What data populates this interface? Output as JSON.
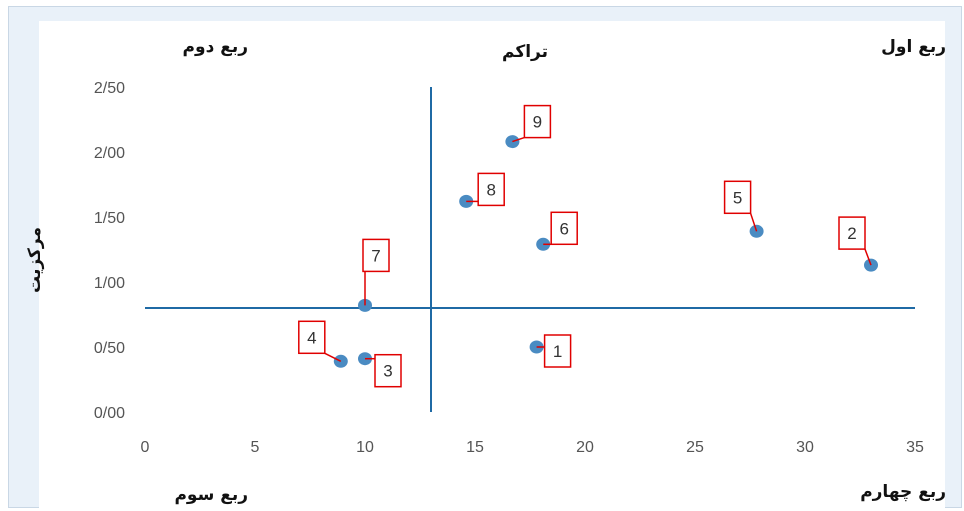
{
  "chart_data": {
    "type": "scatter",
    "title": "تراکم",
    "xlabel": "",
    "ylabel": "مرکزیت",
    "xlim": [
      0,
      35
    ],
    "ylim": [
      0,
      2.5
    ],
    "x_ticks": [
      "0",
      "5",
      "10",
      "15",
      "20",
      "25",
      "30",
      "35"
    ],
    "y_ticks": [
      "0/00",
      "0/50",
      "1/00",
      "1/50",
      "2/00",
      "2/50"
    ],
    "quadrant_labels": {
      "first": "ربع اول",
      "second": "ربع دوم",
      "third": "ربع سوم",
      "fourth": "ربع چهارم"
    },
    "reference_lines": {
      "x": 13,
      "y": 0.8
    },
    "grid": false,
    "points": [
      {
        "label": "1",
        "x": 17.8,
        "y": 0.5
      },
      {
        "label": "2",
        "x": 33.0,
        "y": 1.13
      },
      {
        "label": "3",
        "x": 10.0,
        "y": 0.41
      },
      {
        "label": "4",
        "x": 8.9,
        "y": 0.39
      },
      {
        "label": "5",
        "x": 27.8,
        "y": 1.39
      },
      {
        "label": "6",
        "x": 18.1,
        "y": 1.29
      },
      {
        "label": "7",
        "x": 10.0,
        "y": 0.82
      },
      {
        "label": "8",
        "x": 14.6,
        "y": 1.62
      },
      {
        "label": "9",
        "x": 16.7,
        "y": 2.08
      }
    ],
    "colors": {
      "marker": "#4a8bc2",
      "reference_line": "#1f6aa5",
      "label_border": "#e00000"
    }
  }
}
